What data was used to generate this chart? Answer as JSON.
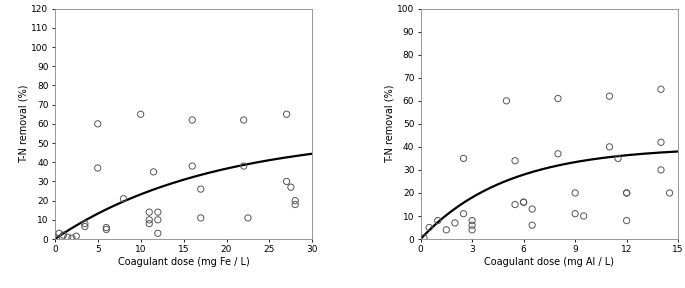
{
  "left": {
    "scatter_x": [
      0.2,
      0.5,
      1.0,
      1.5,
      2.0,
      2.5,
      3.5,
      3.5,
      5.0,
      5.0,
      6.0,
      6.0,
      8.0,
      10.0,
      11.0,
      11.0,
      11.0,
      11.5,
      12.0,
      12.0,
      12.0,
      16.0,
      16.0,
      17.0,
      17.0,
      22.0,
      22.0,
      22.5,
      27.0,
      27.0,
      27.5,
      28.0,
      28.0
    ],
    "scatter_y": [
      0.5,
      3.0,
      2.0,
      1.0,
      0.5,
      1.5,
      8.0,
      6.5,
      60.0,
      37.0,
      6.0,
      5.0,
      21.0,
      65.0,
      14.0,
      10.0,
      8.0,
      35.0,
      14.0,
      10.0,
      3.0,
      62.0,
      38.0,
      26.0,
      11.0,
      62.0,
      38.0,
      11.0,
      65.0,
      30.0,
      27.0,
      20.0,
      18.0
    ],
    "curve_params": [
      55.0,
      0.055
    ],
    "xlabel": "Coagulant dose (mg Fe / L)",
    "ylabel": "T-N removal (%)",
    "xlim": [
      0,
      30
    ],
    "ylim": [
      0,
      120
    ],
    "xticks": [
      0,
      5,
      10,
      15,
      20,
      25,
      30
    ],
    "yticks": [
      0,
      10,
      20,
      30,
      40,
      50,
      60,
      70,
      80,
      90,
      100,
      110,
      120
    ]
  },
  "right": {
    "scatter_x": [
      0.2,
      0.5,
      1.0,
      1.5,
      2.0,
      2.5,
      2.5,
      3.0,
      3.0,
      3.0,
      5.0,
      5.5,
      5.5,
      6.0,
      6.0,
      6.5,
      6.5,
      8.0,
      8.0,
      9.0,
      9.0,
      9.5,
      11.0,
      11.0,
      11.5,
      12.0,
      12.0,
      12.0,
      14.0,
      14.0,
      14.0,
      14.5
    ],
    "scatter_y": [
      0.5,
      5.0,
      8.0,
      4.0,
      7.0,
      35.0,
      11.0,
      8.0,
      6.0,
      4.0,
      60.0,
      34.0,
      15.0,
      16.0,
      16.0,
      13.0,
      6.0,
      61.0,
      37.0,
      20.0,
      11.0,
      10.0,
      62.0,
      40.0,
      35.0,
      20.0,
      20.0,
      8.0,
      65.0,
      42.0,
      30.0,
      20.0
    ],
    "curve_params": [
      40.0,
      0.2
    ],
    "xlabel": "Coagulant dose (mg Al / L)",
    "ylabel": "T-N removal (%)",
    "xlim": [
      0,
      15
    ],
    "ylim": [
      0,
      100
    ],
    "xticks": [
      0,
      3,
      6,
      9,
      12,
      15
    ],
    "yticks": [
      0,
      10,
      20,
      30,
      40,
      50,
      60,
      70,
      80,
      90,
      100
    ]
  },
  "marker_color": "#555555",
  "marker_facecolor": "none",
  "marker_size": 4.5,
  "curve_color": "#000000",
  "curve_linewidth": 1.6,
  "font_size_label": 7,
  "font_size_tick": 6.5,
  "bg_color": "#ffffff"
}
